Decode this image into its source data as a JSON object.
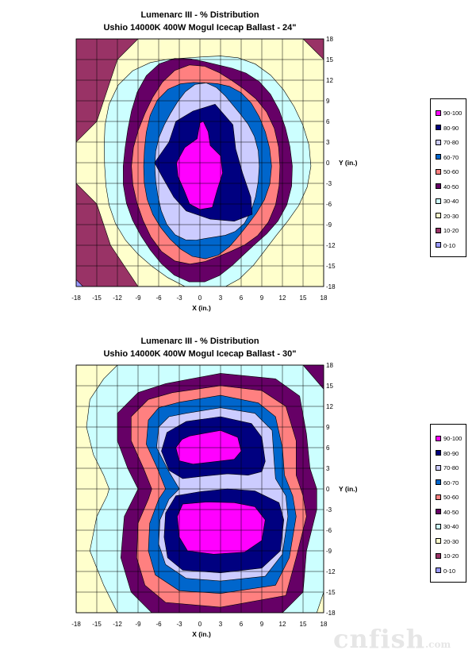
{
  "colors": {
    "90-100": "#ff00ff",
    "80-90": "#000080",
    "70-80": "#ccccff",
    "60-70": "#0066cc",
    "50-60": "#ff8080",
    "40-50": "#660066",
    "30-40": "#ccffff",
    "20-30": "#ffffcc",
    "10-20": "#993366",
    "0-10": "#9999ff"
  },
  "chart_data": [
    {
      "type": "contour",
      "title_line1": "Lumenarc III - % Distribution",
      "title_line2": "Ushio 14000K 400W Mogul Icecap Ballast - 24\"",
      "xlabel": "X (in.)",
      "ylabel": "Y (in.)",
      "xlim": [
        -18,
        18
      ],
      "ylim": [
        -18,
        18
      ],
      "x_ticks": [
        "-18",
        "-15",
        "-12",
        "-9",
        "-6",
        "-3",
        "0",
        "3",
        "6",
        "9",
        "12",
        "15",
        "18"
      ],
      "y_ticks": [
        "18",
        "15",
        "12",
        "9",
        "6",
        "3",
        "0",
        "-3",
        "-6",
        "-9",
        "-12",
        "-15",
        "-18"
      ],
      "legend": [
        "90-100",
        "80-90",
        "70-80",
        "60-70",
        "50-60",
        "40-50",
        "30-40",
        "20-30",
        "10-20",
        "0-10"
      ],
      "peaks": [
        {
          "x": 0,
          "y": 0,
          "percent": 100
        }
      ]
    },
    {
      "type": "contour",
      "title_line1": "Lumenarc III - % Distribution",
      "title_line2": "Ushio 14000K 400W Mogul Icecap Ballast - 30\"",
      "xlabel": "X (in.)",
      "ylabel": "Y (in.)",
      "xlim": [
        -18,
        18
      ],
      "ylim": [
        -18,
        18
      ],
      "x_ticks": [
        "-18",
        "-15",
        "-12",
        "-9",
        "-6",
        "-3",
        "0",
        "3",
        "6",
        "9",
        "12",
        "15",
        "18"
      ],
      "y_ticks": [
        "18",
        "15",
        "12",
        "9",
        "6",
        "3",
        "0",
        "-3",
        "-6",
        "-9",
        "-12",
        "-15",
        "-18"
      ],
      "legend": [
        "90-100",
        "80-90",
        "70-80",
        "60-70",
        "50-60",
        "40-50",
        "30-40",
        "20-30",
        "10-20",
        "0-10"
      ],
      "peaks": [
        {
          "x": 2,
          "y": 6,
          "percent": 100
        },
        {
          "x": 1,
          "y": -5,
          "percent": 100
        }
      ]
    }
  ],
  "watermark": {
    "main": "cnfish",
    "suffix": ".com"
  }
}
